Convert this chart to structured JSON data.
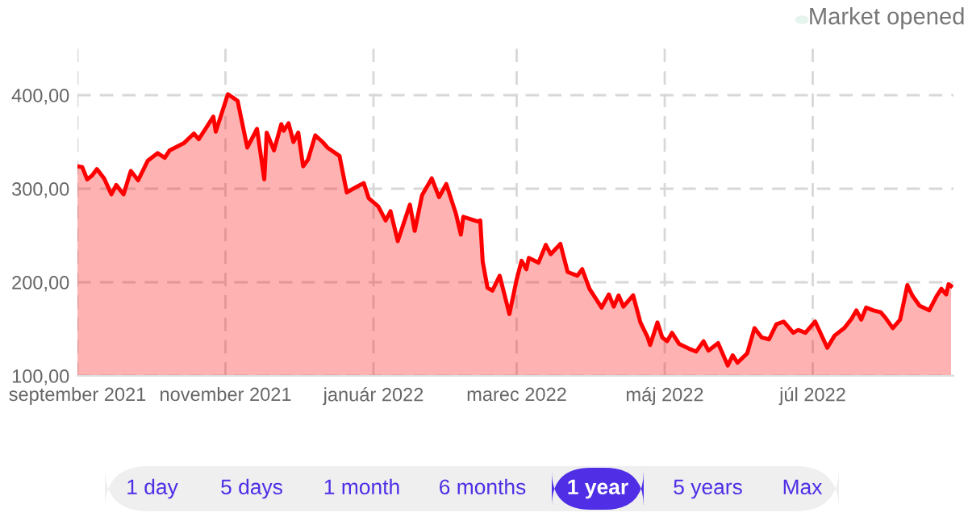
{
  "chart_data": {
    "type": "area",
    "color": "#ff0000",
    "x": [
      "2021-09-01",
      "2021-09-03",
      "2021-09-05",
      "2021-09-07",
      "2021-09-09",
      "2021-09-12",
      "2021-09-15",
      "2021-09-17",
      "2021-09-20",
      "2021-09-23",
      "2021-09-26",
      "2021-09-30",
      "2021-10-04",
      "2021-10-07",
      "2021-10-09",
      "2021-10-15",
      "2021-10-19",
      "2021-10-21",
      "2021-10-27",
      "2021-10-28",
      "2021-11-02",
      "2021-11-06",
      "2021-11-10",
      "2021-11-14",
      "2021-11-17",
      "2021-11-18",
      "2021-11-21",
      "2021-11-24",
      "2021-11-25",
      "2021-11-27",
      "2021-11-29",
      "2021-12-01",
      "2021-12-03",
      "2021-12-05",
      "2021-12-08",
      "2021-12-11",
      "2021-12-13",
      "2021-12-18",
      "2021-12-21",
      "2021-12-25",
      "2021-12-28",
      "2021-12-30",
      "2022-01-03",
      "2022-01-06",
      "2022-01-08",
      "2022-01-11",
      "2022-01-16",
      "2022-01-18",
      "2022-01-21",
      "2022-01-25",
      "2022-01-28",
      "2022-01-31",
      "2022-02-04",
      "2022-02-06",
      "2022-02-07",
      "2022-02-13",
      "2022-02-14",
      "2022-02-15",
      "2022-02-17",
      "2022-02-19",
      "2022-02-22",
      "2022-02-26",
      "2022-03-01",
      "2022-03-03",
      "2022-03-05",
      "2022-03-06",
      "2022-03-10",
      "2022-03-13",
      "2022-03-15",
      "2022-03-19",
      "2022-03-22",
      "2022-03-26",
      "2022-03-28",
      "2022-03-31",
      "2022-04-05",
      "2022-04-08",
      "2022-04-10",
      "2022-04-12",
      "2022-04-14",
      "2022-04-18",
      "2022-04-21",
      "2022-04-24",
      "2022-04-25",
      "2022-04-28",
      "2022-04-30",
      "2022-05-02",
      "2022-05-04",
      "2022-05-07",
      "2022-05-11",
      "2022-05-14",
      "2022-05-17",
      "2022-05-19",
      "2022-05-23",
      "2022-05-27",
      "2022-05-29",
      "2022-05-31",
      "2022-06-04",
      "2022-06-07",
      "2022-06-10",
      "2022-06-13",
      "2022-06-16",
      "2022-06-19",
      "2022-06-23",
      "2022-06-25",
      "2022-06-28",
      "2022-07-02",
      "2022-07-07",
      "2022-07-10",
      "2022-07-14",
      "2022-07-17",
      "2022-07-19",
      "2022-07-21",
      "2022-07-23",
      "2022-07-26",
      "2022-07-29",
      "2022-07-31",
      "2022-08-03",
      "2022-08-06",
      "2022-08-09",
      "2022-08-11",
      "2022-08-14",
      "2022-08-18",
      "2022-08-21",
      "2022-08-23",
      "2022-08-25",
      "2022-08-26",
      "2022-08-27"
    ],
    "values": [
      324,
      323,
      310,
      314,
      321,
      311,
      294,
      304,
      294,
      319,
      309,
      330,
      338,
      333,
      341,
      349,
      359,
      353,
      377,
      361,
      401,
      394,
      344,
      364,
      310,
      360,
      341,
      369,
      362,
      370,
      350,
      360,
      324,
      331,
      357,
      350,
      344,
      335,
      296,
      302,
      306,
      290,
      281,
      266,
      276,
      244,
      283,
      255,
      293,
      311,
      291,
      305,
      273,
      251,
      270,
      265,
      266,
      222,
      194,
      191,
      207,
      166,
      203,
      223,
      214,
      226,
      221,
      240,
      230,
      241,
      211,
      207,
      214,
      193,
      173,
      187,
      174,
      186,
      174,
      186,
      157,
      141,
      133,
      157,
      141,
      137,
      146,
      134,
      129,
      126,
      137,
      127,
      135,
      111,
      122,
      114,
      124,
      151,
      141,
      139,
      155,
      158,
      146,
      149,
      146,
      158,
      130,
      143,
      151,
      161,
      170,
      160,
      173,
      170,
      168,
      162,
      151,
      160,
      197,
      186,
      175,
      170,
      185,
      193,
      187,
      198,
      196
    ],
    "xlim": [
      "2021-09-01",
      "2022-08-28"
    ],
    "xticks": [
      {
        "value": "2021-09-01",
        "label": "september 2021"
      },
      {
        "value": "2021-11-01",
        "label": "november 2021"
      },
      {
        "value": "2022-01-01",
        "label": "január 2022"
      },
      {
        "value": "2022-03-01",
        "label": "marec 2022"
      },
      {
        "value": "2022-05-01",
        "label": "máj 2022"
      },
      {
        "value": "2022-07-01",
        "label": "júl 2022"
      }
    ],
    "ylim": [
      100,
      450
    ],
    "yticks": [
      {
        "value": 100,
        "label": "100,00"
      },
      {
        "value": 200,
        "label": "200,00"
      },
      {
        "value": 300,
        "label": "300,00"
      },
      {
        "value": 400,
        "label": "400,00"
      }
    ],
    "grid": true,
    "line_style": "solid",
    "marker": "none",
    "annotations": [
      "Market opened",
      "1 day",
      "5 days",
      "1 month",
      "6 months",
      "1 year",
      "5 years",
      "Max"
    ]
  }
}
